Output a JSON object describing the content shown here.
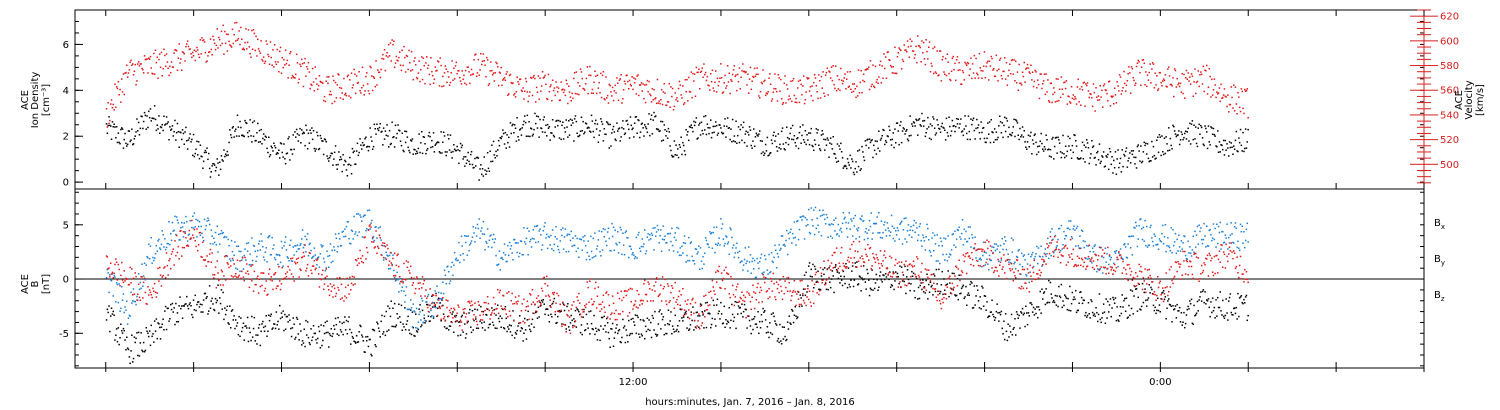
{
  "chart_data": [
    {
      "type": "scatter",
      "panel": "top",
      "ylabel_line1": "ACE",
      "ylabel_line2": "Ion Density",
      "ylabel_unit": "[cm⁻³]",
      "ylim": [
        -0.3,
        7.5
      ],
      "yticks": [
        "0",
        "2",
        "4",
        "6"
      ],
      "yticks_values": [
        0,
        2,
        4,
        6
      ],
      "y2label_line1": "ACE",
      "y2label_line2": "Velocity",
      "y2label_unit": "[km/s]",
      "y2lim": [
        480,
        625
      ],
      "y2ticks": [
        "500",
        "520",
        "540",
        "560",
        "580",
        "600",
        "620"
      ],
      "y2ticks_values": [
        500,
        520,
        540,
        560,
        580,
        600,
        620
      ],
      "series": [
        {
          "color": "#000000",
          "axis": "left",
          "x": [
            0.0,
            0.5,
            1.0,
            1.5,
            2.0,
            2.5,
            3.0,
            3.5,
            4.0,
            4.5,
            5.0,
            5.5,
            6.0,
            6.5,
            7.0,
            7.5,
            8.0,
            8.5,
            9.0,
            9.5,
            10.0,
            10.5,
            11.0,
            11.5,
            12.0,
            12.5,
            13.0,
            13.5,
            14.0,
            14.5,
            15.0,
            15.5,
            16.0,
            16.5,
            17.0,
            17.5,
            18.0,
            18.5,
            19.0,
            19.5,
            20.0,
            20.5,
            21.0,
            21.5,
            22.0,
            22.5,
            23.0,
            23.5,
            24.0,
            24.5,
            25.0,
            25.5,
            26.0
          ],
          "values": [
            2.4,
            1.8,
            3.0,
            2.3,
            1.6,
            0.5,
            2.6,
            2.0,
            1.2,
            2.1,
            1.5,
            0.7,
            2.0,
            2.1,
            1.7,
            1.9,
            1.4,
            0.5,
            1.8,
            2.6,
            2.4,
            2.3,
            2.5,
            2.0,
            2.4,
            2.6,
            1.3,
            2.6,
            2.4,
            2.2,
            1.7,
            2.0,
            2.0,
            1.6,
            0.8,
            1.7,
            2.1,
            2.6,
            2.3,
            2.5,
            2.2,
            2.5,
            1.8,
            1.5,
            1.6,
            1.3,
            0.9,
            1.2,
            1.7,
            2.3,
            2.0,
            1.6,
            1.9
          ]
        },
        {
          "color": "#e01818",
          "axis": "right",
          "x": [
            0.0,
            0.5,
            1.0,
            1.5,
            2.0,
            2.5,
            3.0,
            3.5,
            4.0,
            4.5,
            5.0,
            5.5,
            6.0,
            6.5,
            7.0,
            7.5,
            8.0,
            8.5,
            9.0,
            9.5,
            10.0,
            10.5,
            11.0,
            11.5,
            12.0,
            12.5,
            13.0,
            13.5,
            14.0,
            14.5,
            15.0,
            15.5,
            16.0,
            16.5,
            17.0,
            17.5,
            18.0,
            18.5,
            19.0,
            19.5,
            20.0,
            20.5,
            21.0,
            21.5,
            22.0,
            22.5,
            23.0,
            23.5,
            24.0,
            24.5,
            25.0,
            25.5,
            26.0
          ],
          "values": [
            540,
            575,
            580,
            585,
            590,
            600,
            605,
            595,
            585,
            575,
            560,
            565,
            570,
            590,
            580,
            575,
            575,
            580,
            570,
            560,
            565,
            560,
            570,
            560,
            565,
            560,
            555,
            570,
            570,
            570,
            565,
            560,
            560,
            570,
            565,
            575,
            585,
            595,
            580,
            575,
            580,
            575,
            570,
            560,
            560,
            555,
            560,
            575,
            570,
            565,
            570,
            555,
            550
          ]
        }
      ]
    },
    {
      "type": "scatter",
      "panel": "bottom",
      "ylabel_line1": "ACE",
      "ylabel_line2": "B",
      "ylabel_unit": "[nT]",
      "ylim": [
        -8.2,
        8.3
      ],
      "yticks": [
        "-5",
        "0",
        "5"
      ],
      "yticks_values": [
        -5,
        0,
        5
      ],
      "legend_position": "right",
      "series": [
        {
          "name": "B",
          "subscript": "x",
          "color": "#000000",
          "x": [
            0.0,
            0.5,
            1.0,
            1.5,
            2.0,
            2.5,
            3.0,
            3.5,
            4.0,
            4.5,
            5.0,
            5.5,
            6.0,
            6.5,
            7.0,
            7.5,
            8.0,
            8.5,
            9.0,
            9.5,
            10.0,
            10.5,
            11.0,
            11.5,
            12.0,
            12.5,
            13.0,
            13.5,
            14.0,
            14.5,
            15.0,
            15.5,
            16.0,
            16.5,
            17.0,
            17.5,
            18.0,
            18.5,
            19.0,
            19.5,
            20.0,
            20.5,
            21.0,
            21.5,
            22.0,
            22.5,
            23.0,
            23.5,
            24.0,
            24.5,
            25.0,
            25.5,
            26.0
          ],
          "values": [
            -3.0,
            -6.5,
            -5.5,
            -3.0,
            -2.5,
            -1.5,
            -4.0,
            -5.0,
            -3.5,
            -5.0,
            -5.0,
            -4.5,
            -6.0,
            -3.0,
            -4.0,
            -2.5,
            -4.5,
            -3.5,
            -3.5,
            -4.5,
            -2.5,
            -3.5,
            -4.0,
            -5.0,
            -4.5,
            -4.0,
            -4.0,
            -3.5,
            -3.0,
            -3.5,
            -4.0,
            -5.0,
            0.5,
            0.0,
            0.5,
            -0.5,
            0.5,
            -1.0,
            0.0,
            -1.0,
            -2.0,
            -4.5,
            -3.0,
            -1.0,
            -2.0,
            -2.5,
            -3.0,
            -1.5,
            -2.0,
            -3.5,
            -2.0,
            -2.5,
            -2.5
          ]
        },
        {
          "name": "B",
          "subscript": "y",
          "color": "#1a7fd6",
          "x": [
            0.0,
            0.5,
            1.0,
            1.5,
            2.0,
            2.5,
            3.0,
            3.5,
            4.0,
            4.5,
            5.0,
            5.5,
            6.0,
            6.5,
            7.0,
            7.5,
            8.0,
            8.5,
            9.0,
            9.5,
            10.0,
            10.5,
            11.0,
            11.5,
            12.0,
            12.5,
            13.0,
            13.5,
            14.0,
            14.5,
            15.0,
            15.5,
            16.0,
            16.5,
            17.0,
            17.5,
            18.0,
            18.5,
            19.0,
            19.5,
            20.0,
            20.5,
            21.0,
            21.5,
            22.0,
            22.5,
            23.0,
            23.5,
            24.0,
            24.5,
            25.0,
            25.5,
            26.0
          ],
          "values": [
            0.5,
            -3.0,
            2.5,
            4.5,
            5.0,
            4.0,
            2.0,
            3.0,
            2.5,
            3.5,
            2.0,
            4.5,
            5.5,
            1.5,
            -3.5,
            -2.0,
            2.5,
            4.5,
            2.0,
            3.5,
            4.0,
            3.5,
            3.0,
            4.0,
            3.0,
            4.0,
            3.5,
            2.0,
            4.5,
            2.0,
            1.0,
            3.5,
            5.5,
            5.0,
            5.0,
            5.0,
            4.5,
            4.5,
            2.5,
            4.5,
            2.0,
            3.0,
            1.0,
            3.5,
            4.5,
            2.0,
            1.5,
            4.5,
            4.0,
            3.0,
            4.0,
            4.0,
            4.0
          ]
        },
        {
          "name": "B",
          "subscript": "z",
          "color": "#e01818",
          "x": [
            0.0,
            0.5,
            1.0,
            1.5,
            2.0,
            2.5,
            3.0,
            3.5,
            4.0,
            4.5,
            5.0,
            5.5,
            6.0,
            6.5,
            7.0,
            7.5,
            8.0,
            8.5,
            9.0,
            9.5,
            10.0,
            10.5,
            11.0,
            11.5,
            12.0,
            12.5,
            13.0,
            13.5,
            14.0,
            14.5,
            15.0,
            15.5,
            16.0,
            16.5,
            17.0,
            17.5,
            18.0,
            18.5,
            19.0,
            19.5,
            20.0,
            20.5,
            21.0,
            21.5,
            22.0,
            22.5,
            23.0,
            23.5,
            24.0,
            24.5,
            25.0,
            25.5,
            26.0
          ],
          "values": [
            1.5,
            0.0,
            -1.5,
            2.5,
            4.5,
            0.5,
            1.5,
            -0.5,
            0.0,
            2.0,
            0.0,
            -1.0,
            4.0,
            1.5,
            0.0,
            -2.5,
            -3.5,
            -3.0,
            -2.0,
            -3.0,
            -0.5,
            -4.0,
            -1.0,
            -2.5,
            -2.0,
            -0.5,
            -1.5,
            -3.5,
            0.5,
            -2.5,
            -0.5,
            -1.0,
            -1.5,
            1.5,
            2.5,
            2.0,
            0.5,
            1.0,
            -2.0,
            1.5,
            2.5,
            1.0,
            0.0,
            3.0,
            2.5,
            2.0,
            1.5,
            0.5,
            -1.0,
            1.5,
            1.0,
            2.5,
            0.5
          ]
        }
      ]
    }
  ],
  "xaxis": {
    "ticks": [
      "12:00",
      "0:00"
    ],
    "ticks_values": [
      12,
      24
    ],
    "xlim": [
      -0.7,
      30.0
    ],
    "label": "hours:minutes, Jan.  7, 2016 – Jan.  8, 2016"
  }
}
